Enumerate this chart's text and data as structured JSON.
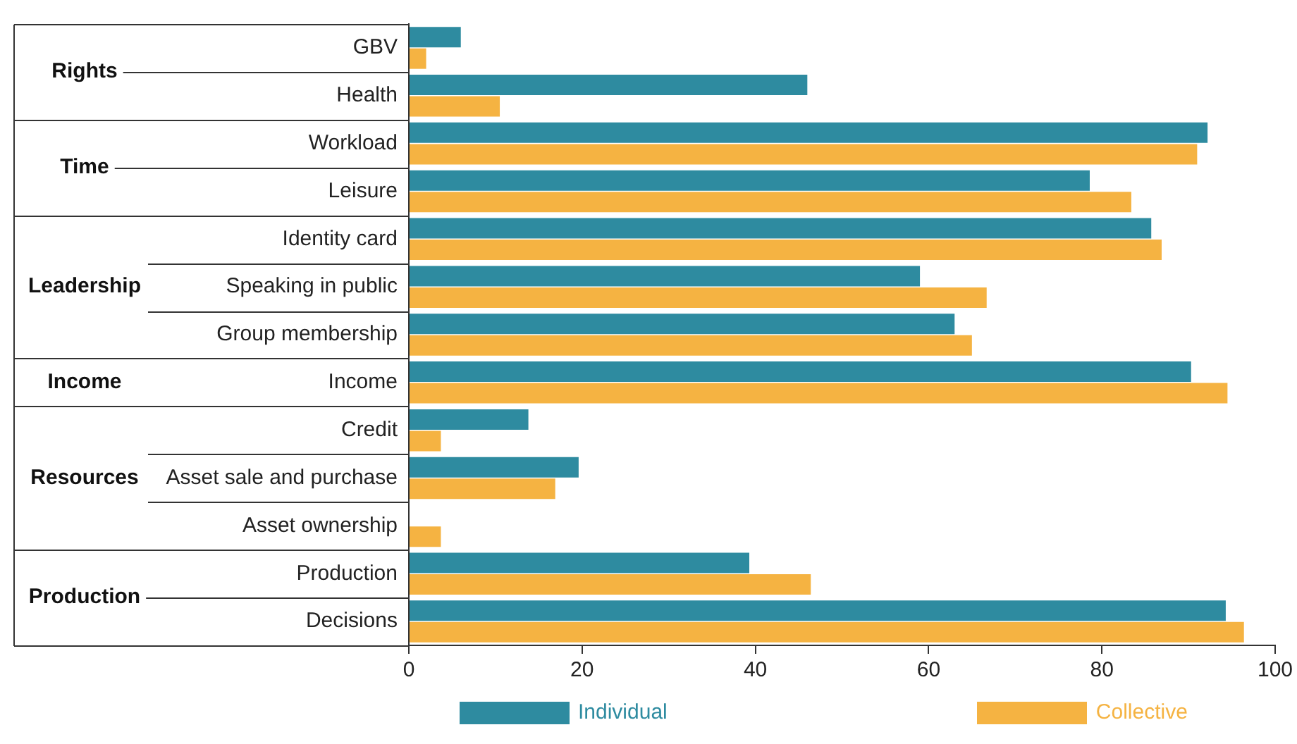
{
  "chart_data": {
    "type": "bar",
    "orientation": "horizontal",
    "categories": [
      "GBV",
      "Health",
      "Workload",
      "Leisure",
      "Identity card",
      "Speaking in public",
      "Group membership",
      "Income",
      "Credit",
      "Asset sale and purchase",
      "Asset ownership",
      "Production",
      "Decisions"
    ],
    "series": [
      {
        "name": "Individual",
        "color": "#2e8ba0",
        "values": [
          6,
          46,
          92.2,
          78.6,
          85.7,
          59,
          63,
          90.3,
          13.8,
          19.6,
          0,
          39.3,
          94.3
        ]
      },
      {
        "name": "Collective",
        "color": "#f5b342",
        "values": [
          2,
          10.5,
          91,
          83.4,
          86.9,
          66.7,
          65,
          94.5,
          3.7,
          16.9,
          3.7,
          46.4,
          96.4
        ]
      }
    ],
    "xlim": [
      0,
      100
    ],
    "xticks": [
      0,
      20,
      40,
      60,
      80,
      100
    ],
    "annotations": [
      "Rights",
      "Time",
      "Leadership",
      "Income",
      "Resources",
      "Production"
    ],
    "grid": false,
    "legend": "bottom"
  }
}
